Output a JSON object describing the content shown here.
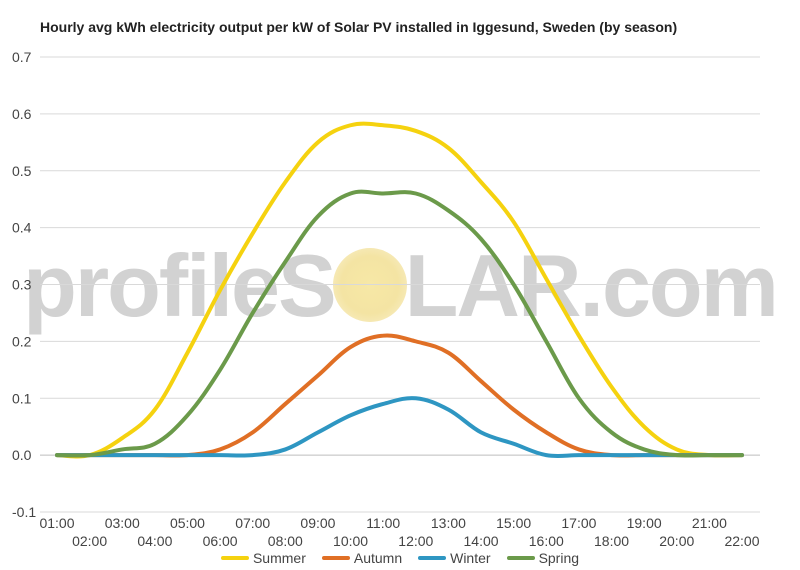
{
  "chart_data": {
    "type": "line",
    "title": "Hourly avg kWh electricity output per kW of Solar PV installed in Iggesund, Sweden (by season)",
    "x": [
      "01:00",
      "02:00",
      "03:00",
      "04:00",
      "05:00",
      "06:00",
      "07:00",
      "08:00",
      "09:00",
      "10:00",
      "11:00",
      "12:00",
      "13:00",
      "14:00",
      "15:00",
      "16:00",
      "17:00",
      "18:00",
      "19:00",
      "20:00",
      "21:00",
      "22:00"
    ],
    "ylim": [
      -0.1,
      0.7
    ],
    "yticks": [
      "-0.1",
      "0.0",
      "0.1",
      "0.2",
      "0.3",
      "0.4",
      "0.5",
      "0.6",
      "0.7"
    ],
    "grid": true,
    "legend_position": "bottom",
    "series": [
      {
        "name": "Summer",
        "color": "#f5d20f",
        "values": [
          0,
          0,
          0.03,
          0.08,
          0.18,
          0.29,
          0.39,
          0.48,
          0.55,
          0.58,
          0.58,
          0.57,
          0.54,
          0.48,
          0.41,
          0.31,
          0.21,
          0.12,
          0.05,
          0.01,
          0,
          0
        ]
      },
      {
        "name": "Autumn",
        "color": "#e06f25",
        "values": [
          0,
          0,
          0,
          0,
          0,
          0.01,
          0.04,
          0.09,
          0.14,
          0.19,
          0.21,
          0.2,
          0.18,
          0.13,
          0.08,
          0.04,
          0.01,
          0,
          0,
          0,
          0,
          0
        ]
      },
      {
        "name": "Winter",
        "color": "#2e96c2",
        "values": [
          0,
          0,
          0,
          0,
          0,
          0,
          0,
          0.01,
          0.04,
          0.07,
          0.09,
          0.1,
          0.08,
          0.04,
          0.02,
          0,
          0,
          0,
          0,
          0,
          0,
          0
        ]
      },
      {
        "name": "Spring",
        "color": "#6b9a4a",
        "values": [
          0,
          0,
          0.01,
          0.02,
          0.07,
          0.15,
          0.25,
          0.34,
          0.42,
          0.46,
          0.46,
          0.46,
          0.43,
          0.38,
          0.3,
          0.2,
          0.1,
          0.04,
          0.01,
          0,
          0,
          0
        ]
      }
    ]
  },
  "watermark": {
    "left": "profileS",
    "right": "LAR.com"
  }
}
